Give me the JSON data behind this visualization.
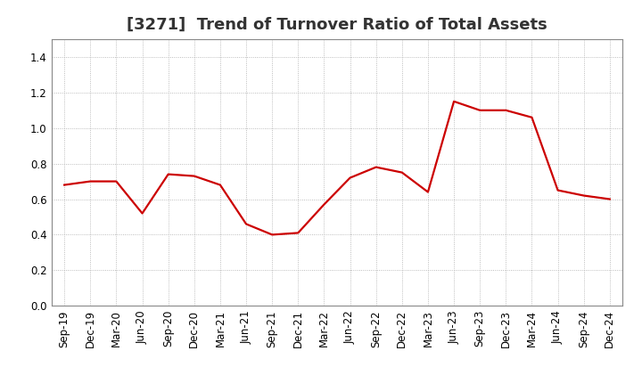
{
  "title": "[3271]  Trend of Turnover Ratio of Total Assets",
  "x_labels": [
    "Sep-19",
    "Dec-19",
    "Mar-20",
    "Jun-20",
    "Sep-20",
    "Dec-20",
    "Mar-21",
    "Jun-21",
    "Sep-21",
    "Dec-21",
    "Mar-22",
    "Jun-22",
    "Sep-22",
    "Dec-22",
    "Mar-23",
    "Jun-23",
    "Sep-23",
    "Dec-23",
    "Mar-24",
    "Jun-24",
    "Sep-24",
    "Dec-24"
  ],
  "y_values": [
    0.68,
    0.7,
    0.7,
    0.52,
    0.74,
    0.73,
    0.68,
    0.46,
    0.4,
    0.41,
    0.57,
    0.72,
    0.78,
    0.75,
    0.64,
    1.15,
    1.1,
    1.1,
    1.06,
    0.65,
    0.62,
    0.6
  ],
  "line_color": "#cc0000",
  "line_width": 1.6,
  "ylim": [
    0.0,
    1.5
  ],
  "yticks": [
    0.0,
    0.2,
    0.4,
    0.6,
    0.8,
    1.0,
    1.2,
    1.4
  ],
  "grid_color": "#aaaaaa",
  "grid_style": "dotted",
  "background_color": "#ffffff",
  "title_fontsize": 13,
  "tick_fontsize": 8.5,
  "title_color": "#333333"
}
